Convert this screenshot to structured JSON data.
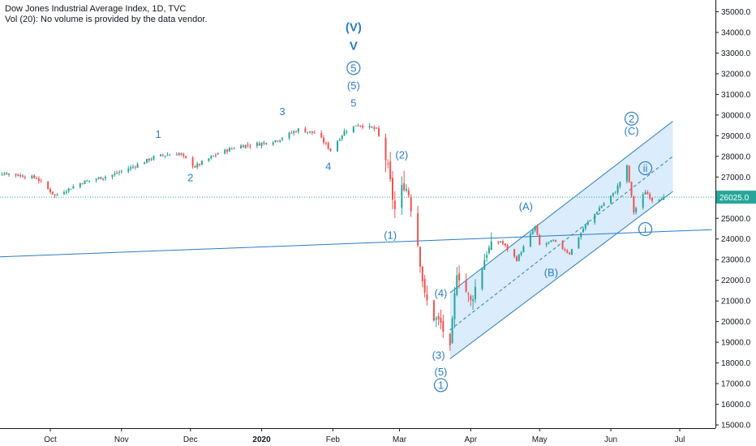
{
  "header": {
    "title": "Dow Jones Industrial Average Index, 1D, TVC",
    "volume_note": "Vol (20): No volume is provided by the data vendor."
  },
  "colors": {
    "up": "#26a69a",
    "down": "#ef5350",
    "wave": "#2a7cc7",
    "channel_fill": "#cfe6fb",
    "price_line": "#26a69a",
    "price_badge": "#26a69a"
  },
  "chart_data": {
    "type": "candlestick",
    "title": "Dow Jones Industrial Average Index, 1D, TVC",
    "y_ticks": [
      15000,
      16000,
      17000,
      18000,
      19000,
      20000,
      21000,
      22000,
      23000,
      24000,
      25000,
      26000,
      27000,
      28000,
      29000,
      30000,
      31000,
      32000,
      33000,
      34000,
      35000
    ],
    "y_tick_labels": [
      "15000.0",
      "16000.0",
      "17000.0",
      "18000.0",
      "19000.0",
      "20000.0",
      "21000.0",
      "22000.0",
      "23000.0",
      "24000.0",
      "25000.0",
      "26000.0",
      "27000.0",
      "28000.0",
      "29000.0",
      "30000.0",
      "31000.0",
      "32000.0",
      "33000.0",
      "34000.0",
      "35000.0"
    ],
    "ylim": [
      14800,
      35500
    ],
    "x_ticks": [
      {
        "date": "2019-10-01",
        "label": "Oct"
      },
      {
        "date": "2019-11-01",
        "label": "Nov"
      },
      {
        "date": "2019-12-01",
        "label": "Dec"
      },
      {
        "date": "2020-01-01",
        "label": "2020"
      },
      {
        "date": "2020-02-01",
        "label": "Feb"
      },
      {
        "date": "2020-03-01",
        "label": "Mar"
      },
      {
        "date": "2020-04-01",
        "label": "Apr"
      },
      {
        "date": "2020-05-01",
        "label": "May"
      },
      {
        "date": "2020-06-01",
        "label": "Jun"
      },
      {
        "date": "2020-07-01",
        "label": "Jul"
      }
    ],
    "xlim": [
      "2019-09-01",
      "2020-07-15"
    ],
    "last_price": 26025.0,
    "last_price_label": "26025.0",
    "anchors": [
      {
        "date": "2019-09-01",
        "close": 27100
      },
      {
        "date": "2019-09-12",
        "close": 27180
      },
      {
        "date": "2019-09-25",
        "close": 26950
      },
      {
        "date": "2019-10-03",
        "close": 26100
      },
      {
        "date": "2019-10-15",
        "close": 26750
      },
      {
        "date": "2019-10-28",
        "close": 27100
      },
      {
        "date": "2019-11-06",
        "close": 27500
      },
      {
        "date": "2019-11-16",
        "close": 28000
      },
      {
        "date": "2019-11-26",
        "close": 28150
      },
      {
        "date": "2019-12-03",
        "close": 27500
      },
      {
        "date": "2019-12-13",
        "close": 28150
      },
      {
        "date": "2019-12-22",
        "close": 28500
      },
      {
        "date": "2019-12-31",
        "close": 28600
      },
      {
        "date": "2020-01-08",
        "close": 28800
      },
      {
        "date": "2020-01-17",
        "close": 29300
      },
      {
        "date": "2020-01-25",
        "close": 29100
      },
      {
        "date": "2020-01-31",
        "close": 28300
      },
      {
        "date": "2020-02-06",
        "close": 29200
      },
      {
        "date": "2020-02-12",
        "close": 29550
      },
      {
        "date": "2020-02-20",
        "close": 29300
      },
      {
        "date": "2020-02-24",
        "close": 27900
      },
      {
        "date": "2020-02-28",
        "close": 25400
      },
      {
        "date": "2020-03-03",
        "close": 26700
      },
      {
        "date": "2020-03-05",
        "close": 26200
      },
      {
        "date": "2020-03-09",
        "close": 23800
      },
      {
        "date": "2020-03-12",
        "close": 21200
      },
      {
        "date": "2020-03-16",
        "close": 20200
      },
      {
        "date": "2020-03-19",
        "close": 19900
      },
      {
        "date": "2020-03-23",
        "close": 18600
      },
      {
        "date": "2020-03-26",
        "close": 22500
      },
      {
        "date": "2020-04-01",
        "close": 20950
      },
      {
        "date": "2020-04-08",
        "close": 23400
      },
      {
        "date": "2020-04-14",
        "close": 23900
      },
      {
        "date": "2020-04-21",
        "close": 23000
      },
      {
        "date": "2020-04-29",
        "close": 24600
      },
      {
        "date": "2020-05-01",
        "close": 23700
      },
      {
        "date": "2020-05-07",
        "close": 23900
      },
      {
        "date": "2020-05-14",
        "close": 23300
      },
      {
        "date": "2020-05-20",
        "close": 24500
      },
      {
        "date": "2020-05-27",
        "close": 25500
      },
      {
        "date": "2020-06-03",
        "close": 26300
      },
      {
        "date": "2020-06-08",
        "close": 27500
      },
      {
        "date": "2020-06-11",
        "close": 25300
      },
      {
        "date": "2020-06-16",
        "close": 26300
      },
      {
        "date": "2020-06-19",
        "close": 25900
      },
      {
        "date": "2020-06-24",
        "close": 26025
      }
    ],
    "lines": [
      {
        "name": "support-line",
        "from": {
          "date": "2019-09-01",
          "y": 23100
        },
        "to": {
          "date": "2020-07-15",
          "y": 24450
        }
      },
      {
        "name": "channel-lower",
        "from": {
          "date": "2020-03-23",
          "y": 18200
        },
        "to": {
          "date": "2020-06-28",
          "y": 26300
        }
      },
      {
        "name": "channel-mid",
        "from": {
          "date": "2020-03-23",
          "y": 19600
        },
        "to": {
          "date": "2020-06-28",
          "y": 28000
        }
      },
      {
        "name": "channel-upper",
        "from": {
          "date": "2020-03-23",
          "y": 21400
        },
        "to": {
          "date": "2020-06-28",
          "y": 29700
        }
      }
    ],
    "annotations": [
      {
        "text": "(V)",
        "date": "2020-02-10",
        "y": 34050,
        "style": "bold",
        "shape": "none"
      },
      {
        "text": "V",
        "date": "2020-02-10",
        "y": 33150,
        "style": "bold",
        "shape": "none"
      },
      {
        "text": "5",
        "date": "2020-02-10",
        "y": 32100,
        "style": "normal",
        "shape": "circle"
      },
      {
        "text": "(5)",
        "date": "2020-02-10",
        "y": 31250,
        "style": "normal",
        "shape": "none"
      },
      {
        "text": "5",
        "date": "2020-02-10",
        "y": 30400,
        "style": "normal",
        "shape": "none"
      },
      {
        "text": "3",
        "date": "2020-01-10",
        "y": 30000,
        "style": "normal",
        "shape": "none"
      },
      {
        "text": "1",
        "date": "2019-11-17",
        "y": 28900,
        "style": "normal",
        "shape": "none"
      },
      {
        "text": "2",
        "date": "2019-12-01",
        "y": 26800,
        "style": "normal",
        "shape": "none"
      },
      {
        "text": "4",
        "date": "2020-01-30",
        "y": 27350,
        "style": "normal",
        "shape": "none"
      },
      {
        "text": "(2)",
        "date": "2020-03-02",
        "y": 27900,
        "style": "normal",
        "shape": "none"
      },
      {
        "text": "(1)",
        "date": "2020-02-26",
        "y": 24000,
        "style": "normal",
        "shape": "none"
      },
      {
        "text": "(4)",
        "date": "2020-03-19",
        "y": 21200,
        "style": "normal",
        "shape": "none"
      },
      {
        "text": "(3)",
        "date": "2020-03-18",
        "y": 18200,
        "style": "normal",
        "shape": "none"
      },
      {
        "text": "(5)",
        "date": "2020-03-19",
        "y": 17400,
        "style": "normal",
        "shape": "none"
      },
      {
        "text": "1",
        "date": "2020-03-19",
        "y": 16750,
        "style": "normal",
        "shape": "circle"
      },
      {
        "text": "(A)",
        "date": "2020-04-25",
        "y": 25400,
        "style": "normal",
        "shape": "none"
      },
      {
        "text": "(B)",
        "date": "2020-05-06",
        "y": 22200,
        "style": "normal",
        "shape": "none"
      },
      {
        "text": "2",
        "date": "2020-06-10",
        "y": 29650,
        "style": "normal",
        "shape": "circle"
      },
      {
        "text": "(C)",
        "date": "2020-06-10",
        "y": 29050,
        "style": "normal",
        "shape": "none"
      },
      {
        "text": "ii",
        "date": "2020-06-16",
        "y": 27250,
        "style": "normal",
        "shape": "circle"
      },
      {
        "text": "i",
        "date": "2020-06-16",
        "y": 24300,
        "style": "normal",
        "shape": "circle"
      }
    ]
  }
}
